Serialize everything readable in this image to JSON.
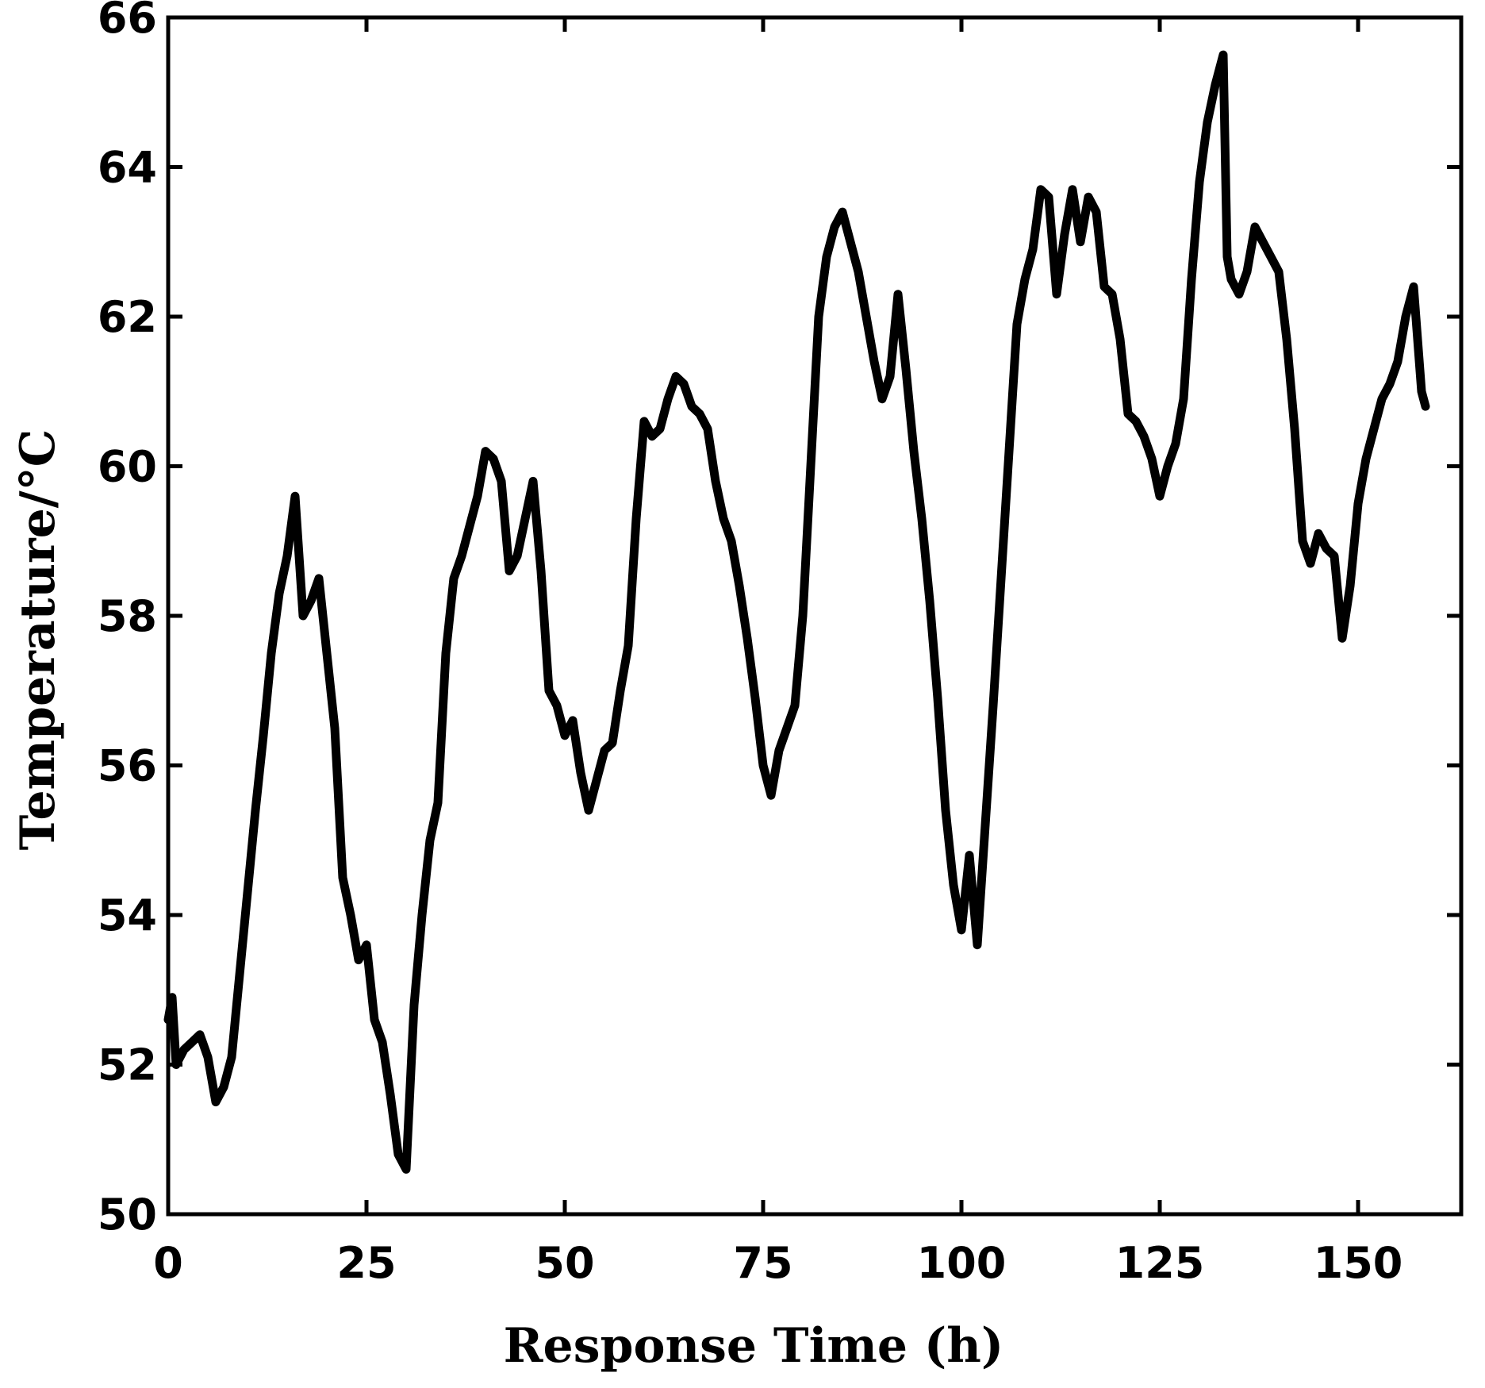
{
  "chart_data": {
    "type": "line",
    "title": "",
    "xlabel": "Response Time (h)",
    "ylabel": "Temperature/°C",
    "xlim": [
      0,
      163
    ],
    "ylim": [
      50,
      66
    ],
    "xticks": [
      0,
      25,
      50,
      75,
      100,
      125,
      150
    ],
    "yticks": [
      50,
      52,
      54,
      56,
      58,
      60,
      62,
      64,
      66
    ],
    "grid": false,
    "legend": "none",
    "series": [
      {
        "color": "#000000",
        "x": [
          0,
          0.5,
          1,
          2,
          3,
          4,
          5,
          6,
          7,
          8,
          9,
          10,
          11,
          12,
          13,
          14,
          15,
          16,
          17,
          18,
          19,
          20,
          21,
          22,
          23,
          24,
          25,
          26,
          27,
          28,
          29,
          30,
          31,
          32,
          33,
          34,
          35,
          36,
          37,
          38,
          39,
          40,
          41,
          42,
          43,
          44,
          45,
          46,
          47,
          48,
          49,
          50,
          51,
          52,
          53,
          54,
          55,
          56,
          57,
          58,
          59,
          60,
          61,
          62,
          63,
          64,
          65,
          66,
          67,
          68,
          69,
          70,
          71,
          72,
          73,
          74,
          75,
          76,
          77,
          78,
          79,
          80,
          81,
          82,
          83,
          84,
          85,
          86,
          87,
          88,
          89,
          90,
          91,
          92,
          93,
          94,
          95,
          96,
          97,
          98,
          99,
          100,
          101,
          102,
          103,
          104,
          105,
          106,
          107,
          108,
          109,
          110,
          111,
          112,
          113,
          114,
          115,
          116,
          117,
          118,
          119,
          120,
          121,
          122,
          123,
          124,
          125,
          126,
          127,
          128,
          129,
          130,
          131,
          132,
          133,
          133.5,
          134,
          135,
          136,
          137,
          138,
          139,
          140,
          141,
          142,
          143,
          144,
          145,
          146,
          147,
          148,
          149,
          150,
          151,
          152,
          153,
          154,
          155,
          156,
          157,
          158,
          158.5
        ],
        "y": [
          52.6,
          52.9,
          52.0,
          52.2,
          52.3,
          52.4,
          52.1,
          51.5,
          51.7,
          52.1,
          53.2,
          54.3,
          55.4,
          56.4,
          57.5,
          58.3,
          58.8,
          59.6,
          58.0,
          58.2,
          58.5,
          57.5,
          56.5,
          54.5,
          54.0,
          53.4,
          53.6,
          52.6,
          52.3,
          51.6,
          50.8,
          50.6,
          52.8,
          54.0,
          55.0,
          55.5,
          57.5,
          58.5,
          58.8,
          59.2,
          59.6,
          60.2,
          60.1,
          59.8,
          58.6,
          58.8,
          59.3,
          59.8,
          58.6,
          57.0,
          56.8,
          56.4,
          56.6,
          55.9,
          55.4,
          55.8,
          56.2,
          56.3,
          57.0,
          57.6,
          59.3,
          60.6,
          60.4,
          60.5,
          60.9,
          61.2,
          61.1,
          60.8,
          60.7,
          60.5,
          59.8,
          59.3,
          59.0,
          58.4,
          57.7,
          56.9,
          56.0,
          55.6,
          56.2,
          56.5,
          56.8,
          58.0,
          60.0,
          62.0,
          62.8,
          63.2,
          63.4,
          63.0,
          62.6,
          62.0,
          61.4,
          60.9,
          61.2,
          62.3,
          61.3,
          60.2,
          59.3,
          58.2,
          56.9,
          55.4,
          54.4,
          53.8,
          54.8,
          53.6,
          55.2,
          56.8,
          58.5,
          60.2,
          61.9,
          62.5,
          62.9,
          63.7,
          63.6,
          62.3,
          63.1,
          63.7,
          63.0,
          63.6,
          63.4,
          62.4,
          62.3,
          61.7,
          60.7,
          60.6,
          60.4,
          60.1,
          59.6,
          60.0,
          60.3,
          60.9,
          62.5,
          63.8,
          64.6,
          65.1,
          65.5,
          62.8,
          62.5,
          62.3,
          62.6,
          63.2,
          63.0,
          62.8,
          62.6,
          61.7,
          60.5,
          59.0,
          58.7,
          59.1,
          58.9,
          58.8,
          57.7,
          58.4,
          59.5,
          60.1,
          60.5,
          60.9,
          61.1,
          61.4,
          62.0,
          62.4,
          61.0,
          60.8
        ]
      }
    ]
  }
}
